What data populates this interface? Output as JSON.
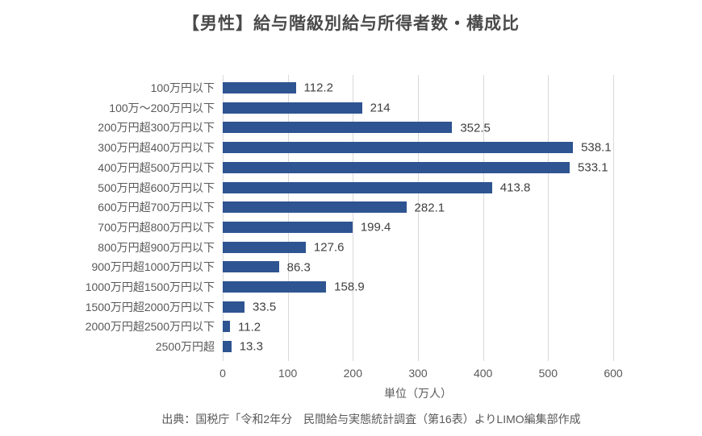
{
  "title": "【男性】給与階級別給与所得者数・構成比",
  "chart_data": {
    "type": "bar",
    "orientation": "horizontal",
    "categories": [
      "100万円以下",
      "100万～200万円以下",
      "200万円超300万円以下",
      "300万円超400万円以下",
      "400万円超500万円以下",
      "500万円超600万円以下",
      "600万円超700万円以下",
      "700万円超800万円以下",
      "800万円超900万円以下",
      "900万円超1000万円以下",
      "1000万円超1500万円以下",
      "1500万円超2000万円以下",
      "2000万円超2500万円以下",
      "2500万円超"
    ],
    "values": [
      112.2,
      214,
      352.5,
      538.1,
      533.1,
      413.8,
      282.1,
      199.4,
      127.6,
      86.3,
      158.9,
      33.5,
      11.2,
      13.3
    ],
    "value_labels": [
      "112.2",
      "214",
      "352.5",
      "538.1",
      "533.1",
      "413.8",
      "282.1",
      "199.4",
      "127.6",
      "86.3",
      "158.9",
      "33.5",
      "11.2",
      "13.3"
    ],
    "xlabel": "単位（万人）",
    "xlim": [
      0,
      600
    ],
    "xticks": [
      0,
      100,
      200,
      300,
      400,
      500,
      600
    ],
    "bar_color": "#2e5491",
    "gridline_color": "#d9d9d9",
    "grid": true,
    "legend": "none"
  },
  "footer": {
    "source_text": "出典：国税庁「令和2年分　民間給与実態統計調査（第16表）よりLIMO編集部作成"
  }
}
